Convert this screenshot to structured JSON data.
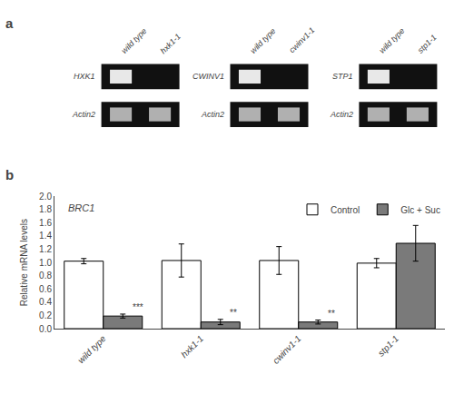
{
  "chart_data": [
    {
      "type": "gel",
      "panel_label": "a",
      "color": "#111111",
      "panels": [
        {
          "lanes": [
            "wild type",
            "hxk1-1"
          ],
          "rows": [
            {
              "label": "HXK1",
              "bands": [
                true,
                false
              ],
              "color": "#e8e8e8"
            },
            {
              "label": "Actin2",
              "bands": [
                true,
                true
              ],
              "color": "#b0b0b0"
            }
          ]
        },
        {
          "lanes": [
            "wild type",
            "cwinv1-1"
          ],
          "rows": [
            {
              "label": "CWINV1",
              "bands": [
                true,
                false
              ],
              "color": "#e8e8e8"
            },
            {
              "label": "Actin2",
              "bands": [
                true,
                true
              ],
              "color": "#b0b0b0"
            }
          ]
        },
        {
          "lanes": [
            "wild type",
            "stp1-1"
          ],
          "rows": [
            {
              "label": "STP1",
              "bands": [
                true,
                false
              ],
              "color": "#e8e8e8"
            },
            {
              "label": "Actin2",
              "bands": [
                true,
                true
              ],
              "color": "#b0b0b0"
            }
          ]
        }
      ]
    },
    {
      "type": "bar",
      "panel_label": "b",
      "categories": [
        "wild type",
        "hxk1-1",
        "cwinv1-1",
        "stp1-1"
      ],
      "series": [
        {
          "name": "Control",
          "color": "#ffffff",
          "values": [
            1.02,
            1.03,
            1.03,
            0.99
          ],
          "errors": [
            0.04,
            0.25,
            0.21,
            0.07
          ]
        },
        {
          "name": "Glc + Suc",
          "color": "#7a7a7a",
          "values": [
            0.19,
            0.1,
            0.1,
            1.29
          ],
          "errors": [
            0.03,
            0.04,
            0.03,
            0.27
          ]
        }
      ],
      "ylabel": "Relative mRNA levels",
      "ylim": [
        0,
        2.0
      ],
      "yticks": [
        {
          "value": 0.0,
          "label": "0.0"
        },
        0.2,
        0.4,
        0.6,
        0.8,
        {
          "value": 1.0,
          "label": "1.0"
        },
        1.2,
        1.4,
        1.6,
        1.8,
        {
          "value": 2.0,
          "label": "2.0"
        }
      ],
      "grid": false,
      "legend": "upper right",
      "annotations": [
        {
          "text": "BRC1"
        },
        {
          "category": "wild type",
          "series": "Glc + Suc",
          "text": "***"
        },
        {
          "category": "hxk1-1",
          "series": "Glc + Suc",
          "text": "**"
        },
        {
          "category": "cwinv1-1",
          "series": "Glc + Suc",
          "text": "**"
        }
      ]
    }
  ]
}
